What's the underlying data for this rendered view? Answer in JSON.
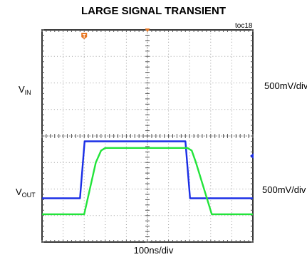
{
  "chart_data": {
    "type": "line",
    "title": "LARGE SIGNAL TRANSIENT",
    "tag": "toc18",
    "xlabel": "100ns/div",
    "x_divisions": 10,
    "y_divisions": 8,
    "grid": true,
    "trigger_marker": "T",
    "series": [
      {
        "name": "V_IN",
        "label_main": "V",
        "label_sub": "IN",
        "scale": "500mV/div",
        "color": "#1a2ee6",
        "ground_div": 3.25,
        "points": [
          [
            0,
            1.65
          ],
          [
            1.8,
            1.65
          ],
          [
            2.02,
            3.8
          ],
          [
            6.8,
            3.8
          ],
          [
            7.02,
            1.65
          ],
          [
            10,
            1.65
          ]
        ]
      },
      {
        "name": "V_OUT",
        "label_main": "V",
        "label_sub": "OUT",
        "scale": "500mV/div",
        "color": "#22e43a",
        "points": [
          [
            0,
            1.05
          ],
          [
            2.0,
            1.05
          ],
          [
            2.55,
            3.0
          ],
          [
            2.8,
            3.45
          ],
          [
            3.0,
            3.55
          ],
          [
            6.9,
            3.55
          ],
          [
            7.1,
            3.45
          ],
          [
            7.3,
            3.0
          ],
          [
            8.05,
            1.05
          ],
          [
            10,
            1.05
          ]
        ]
      }
    ]
  }
}
